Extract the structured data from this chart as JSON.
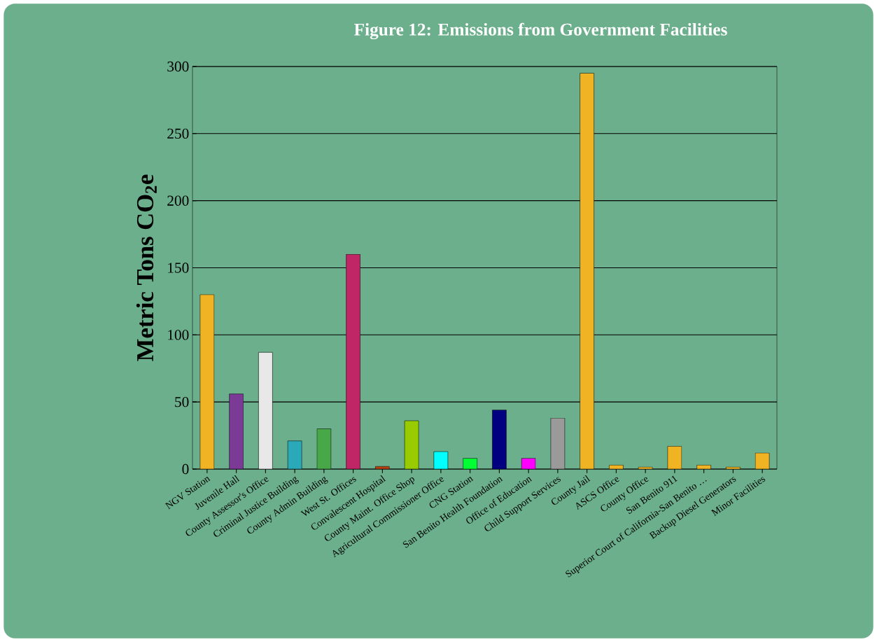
{
  "chart_data": {
    "type": "bar",
    "title": "Figure 12: Emissions from Government Facilities",
    "ylabel": "Metric Tons CO$_{2}$e",
    "categories": [
      "NGV Station",
      "Juvenile Hall",
      "County Assessor's Office",
      "Criminal Justice Building",
      "County Admin Building",
      "West St. Offices",
      "Convalescent Hospital",
      "County Maint. Office Shop",
      "Agricultural Commissioner Office",
      "CNG Station",
      "San Benito Health Foundation",
      "Office of Education",
      "Child Support Services",
      "County Jail",
      "ASCS Office",
      "County Office",
      "San Benito 911",
      "Superior Court of California-San Benito …",
      "Backup Diesel Generators",
      "Minor Facilities"
    ],
    "values": [
      130,
      56,
      87,
      21,
      30,
      160,
      2,
      36,
      13,
      8,
      44,
      8,
      38,
      295,
      3,
      1.5,
      17,
      3,
      1.5,
      12
    ],
    "colors": [
      "#f0b323",
      "#7b3a96",
      "#e8e8e8",
      "#2aaab8",
      "#48a848",
      "#c02566",
      "#b84010",
      "#99cc00",
      "#00ffff",
      "#00ff33",
      "#000080",
      "#ff00ff",
      "#9a9a9a",
      "#f0b323",
      "#f0b323",
      "#f0b323",
      "#f0b323",
      "#f0b323",
      "#f0b323",
      "#f0b323"
    ],
    "ylim": [
      0,
      300
    ],
    "yticks": [
      0,
      50,
      100,
      150,
      200,
      250,
      300
    ],
    "grid": "y"
  }
}
